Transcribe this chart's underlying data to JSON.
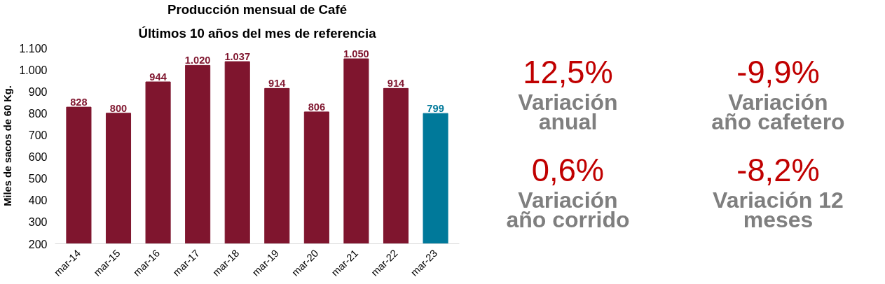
{
  "chart_data": [
    {
      "type": "bar",
      "title": "Producción mensual de Café",
      "subtitle": "Últimos 10 años del mes de referencia",
      "ylabel": "Miles de sacos de 60 Kg.",
      "categories": [
        "mar-14",
        "mar-15",
        "mar-16",
        "mar-17",
        "mar-18",
        "mar-19",
        "mar-20",
        "mar-21",
        "mar-22",
        "mar-23"
      ],
      "values": [
        828,
        800,
        944,
        1020,
        1037,
        914,
        806,
        1050,
        914,
        799
      ],
      "colors": [
        "#7f152e",
        "#7f152e",
        "#7f152e",
        "#7f152e",
        "#7f152e",
        "#7f152e",
        "#7f152e",
        "#7f152e",
        "#7f152e",
        "#00799a"
      ],
      "ylim": [
        200,
        1100
      ],
      "yticks": [
        200,
        300,
        400,
        500,
        600,
        700,
        800,
        900,
        {
          "value": 1000,
          "label": "1.000"
        },
        {
          "value": 1100,
          "label": "1.100"
        }
      ],
      "value_labels": [
        "828",
        "800",
        "944",
        "1.020",
        "1.037",
        "914",
        "806",
        "1.050",
        "914",
        "799"
      ],
      "grid": false
    },
    {
      "type": "other",
      "annotations": [
        "12,5%",
        "Variación anual",
        "-9,9%",
        "Variación año cafetero",
        "0,6%",
        "Variación año corrido",
        "-8,2%",
        "Variación 12 meses"
      ]
    }
  ]
}
